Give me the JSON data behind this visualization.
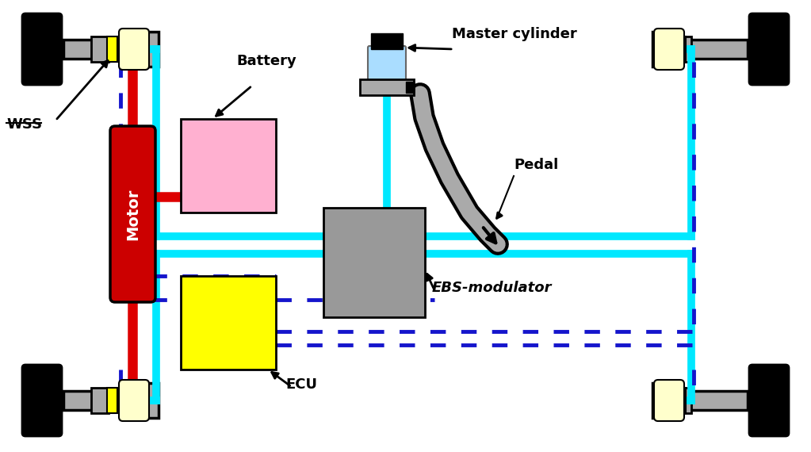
{
  "background_color": "#ffffff",
  "cyan": "#00e8ff",
  "red": "#dd0000",
  "blue_dash": "#1515cc",
  "black": "#000000",
  "gray": "#888888",
  "light_gray": "#aaaaaa",
  "wheel_color": "#111111",
  "motor_fill": "#cc0000",
  "battery_fill": "#ffb0d0",
  "ecu_fill": "#ffff00",
  "ebs_fill": "#999999",
  "wss_fill": "#ffff00",
  "wss_light_fill": "#ffffcc",
  "master_fluid": "#aaddff",
  "motor_text": "Motor",
  "label_battery": "Battery",
  "label_master": "Master cylinder",
  "label_pedal": "Pedal",
  "label_ebs": "EBS-modulator",
  "label_ecu": "ECU",
  "label_wss": "WSS",
  "lw_cyan": 7,
  "lw_red": 9,
  "lw_blue": 3.5
}
